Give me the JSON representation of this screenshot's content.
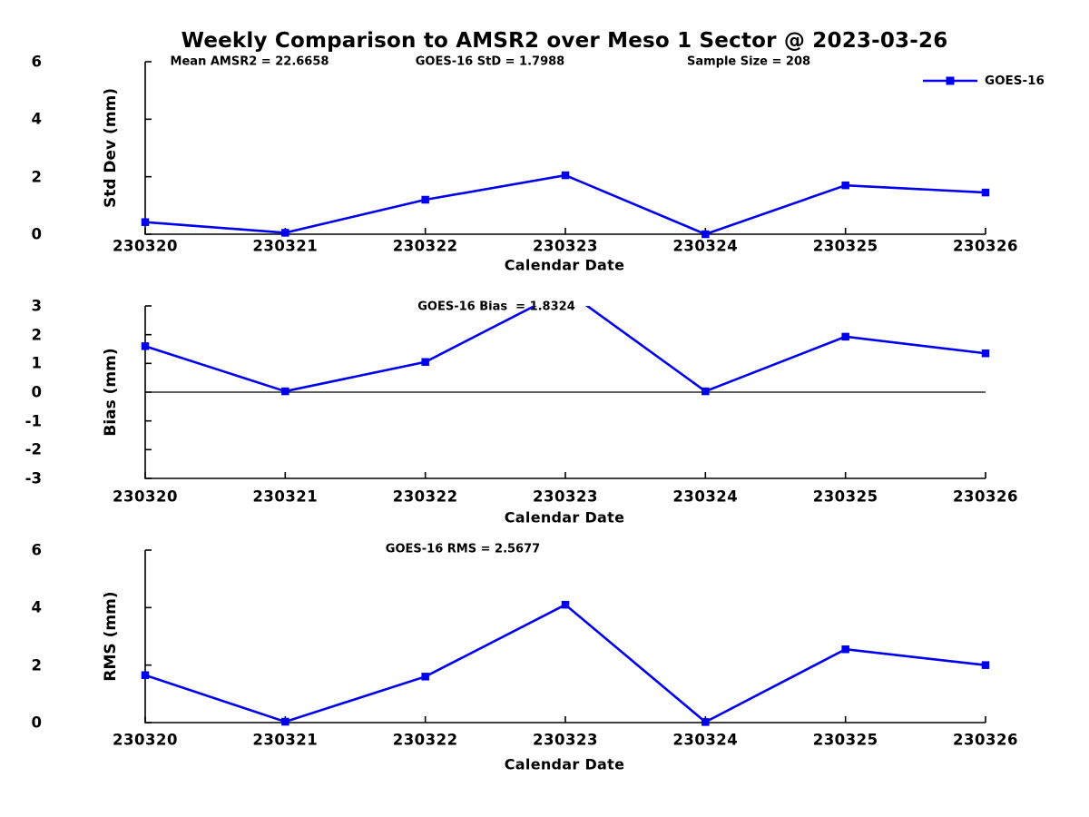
{
  "page": {
    "title": "Weekly Comparison to AMSR2 over Meso 1 Sector @ 2023-03-26"
  },
  "style": {
    "line_color": "#0000EE",
    "axis_color": "#000000",
    "text_color": "#000000",
    "background": "#FFFFFF",
    "marker": "square"
  },
  "chart_data": [
    {
      "type": "line",
      "name": "std-dev-panel",
      "categories": [
        "230320",
        "230321",
        "230322",
        "230323",
        "230324",
        "230325",
        "230326"
      ],
      "series": [
        {
          "name": "GOES-16",
          "values": [
            0.42,
            0.05,
            1.2,
            2.05,
            0.0,
            1.7,
            1.45
          ]
        }
      ],
      "xlabel": "Calendar Date",
      "ylabel": "Std Dev (mm)",
      "ylim": [
        0,
        6
      ],
      "yticks": [
        0,
        2,
        4,
        6
      ],
      "grid": false,
      "annotations": [
        "Mean AMSR2 = 22.6658",
        "GOES-16 StD = 1.7988",
        "Sample Size = 208"
      ],
      "legend": {
        "label": "GOES-16",
        "position": "upper right"
      },
      "line_color": "#0000EE"
    },
    {
      "type": "line",
      "name": "bias-panel",
      "categories": [
        "230320",
        "230321",
        "230322",
        "230323",
        "230324",
        "230325",
        "230326"
      ],
      "series": [
        {
          "name": "GOES-16",
          "values": [
            1.6,
            0.03,
            1.05,
            3.55,
            0.03,
            1.93,
            1.35
          ]
        }
      ],
      "xlabel": "Calendar Date",
      "ylabel": "Bias (mm)",
      "ylim": [
        -3,
        3
      ],
      "yticks": [
        3,
        2,
        1,
        0,
        -1,
        -2,
        -3
      ],
      "zero_line": true,
      "grid": false,
      "annotations": [
        "GOES-16 Bias  = 1.8324"
      ],
      "note": "230323 point exceeds y-axis max (approx. 3.55); line is clipped at y = 3",
      "line_color": "#0000EE"
    },
    {
      "type": "line",
      "name": "rms-panel",
      "categories": [
        "230320",
        "230321",
        "230322",
        "230323",
        "230324",
        "230325",
        "230326"
      ],
      "series": [
        {
          "name": "GOES-16",
          "values": [
            1.65,
            0.03,
            1.6,
            4.1,
            0.02,
            2.55,
            2.0
          ]
        }
      ],
      "xlabel": "Calendar Date",
      "ylabel": "RMS (mm)",
      "ylim": [
        0,
        6
      ],
      "yticks": [
        0,
        2,
        4,
        6
      ],
      "grid": false,
      "annotations": [
        "GOES-16 RMS = 2.5677"
      ],
      "line_color": "#0000EE"
    }
  ]
}
